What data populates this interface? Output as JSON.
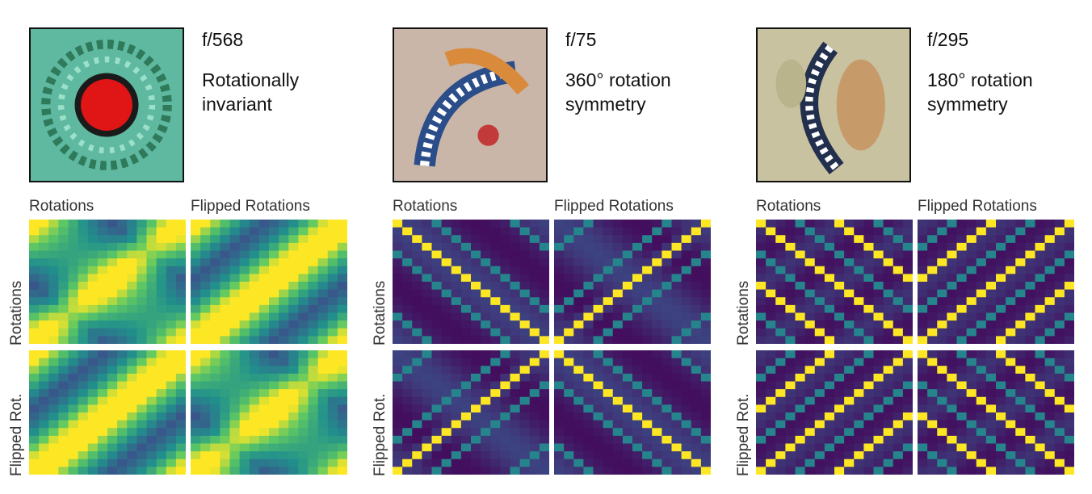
{
  "panels": [
    {
      "feature_id": "f/568",
      "description": "Rotationally\ninvariant",
      "pattern": "invariant",
      "viz_colors": [
        "#5fb8a0",
        "#e01515",
        "#2f7a5a"
      ],
      "col_labels": [
        "Rotations",
        "Flipped Rotations"
      ],
      "row_labels": [
        "Rotations",
        "Flipped Rot."
      ]
    },
    {
      "feature_id": "f/75",
      "description": "360° rotation\nsymmetry",
      "pattern": "rot360",
      "viz_colors": [
        "#c9b6a8",
        "#d98a3a",
        "#2b4d8a"
      ],
      "col_labels": [
        "Rotations",
        "Flipped Rotations"
      ],
      "row_labels": [
        "Rotations",
        "Flipped Rot."
      ]
    },
    {
      "feature_id": "f/295",
      "description": "180° rotation\nsymmetry",
      "pattern": "rot180",
      "viz_colors": [
        "#c8c2a0",
        "#c79a6a",
        "#22304d"
      ],
      "col_labels": [
        "Rotations",
        "Flipped Rotations"
      ],
      "row_labels": [
        "Rotations",
        "Flipped Rot."
      ]
    }
  ],
  "colormap": [
    "#440154",
    "#3b528b",
    "#21918c",
    "#5ec962",
    "#fde725"
  ]
}
